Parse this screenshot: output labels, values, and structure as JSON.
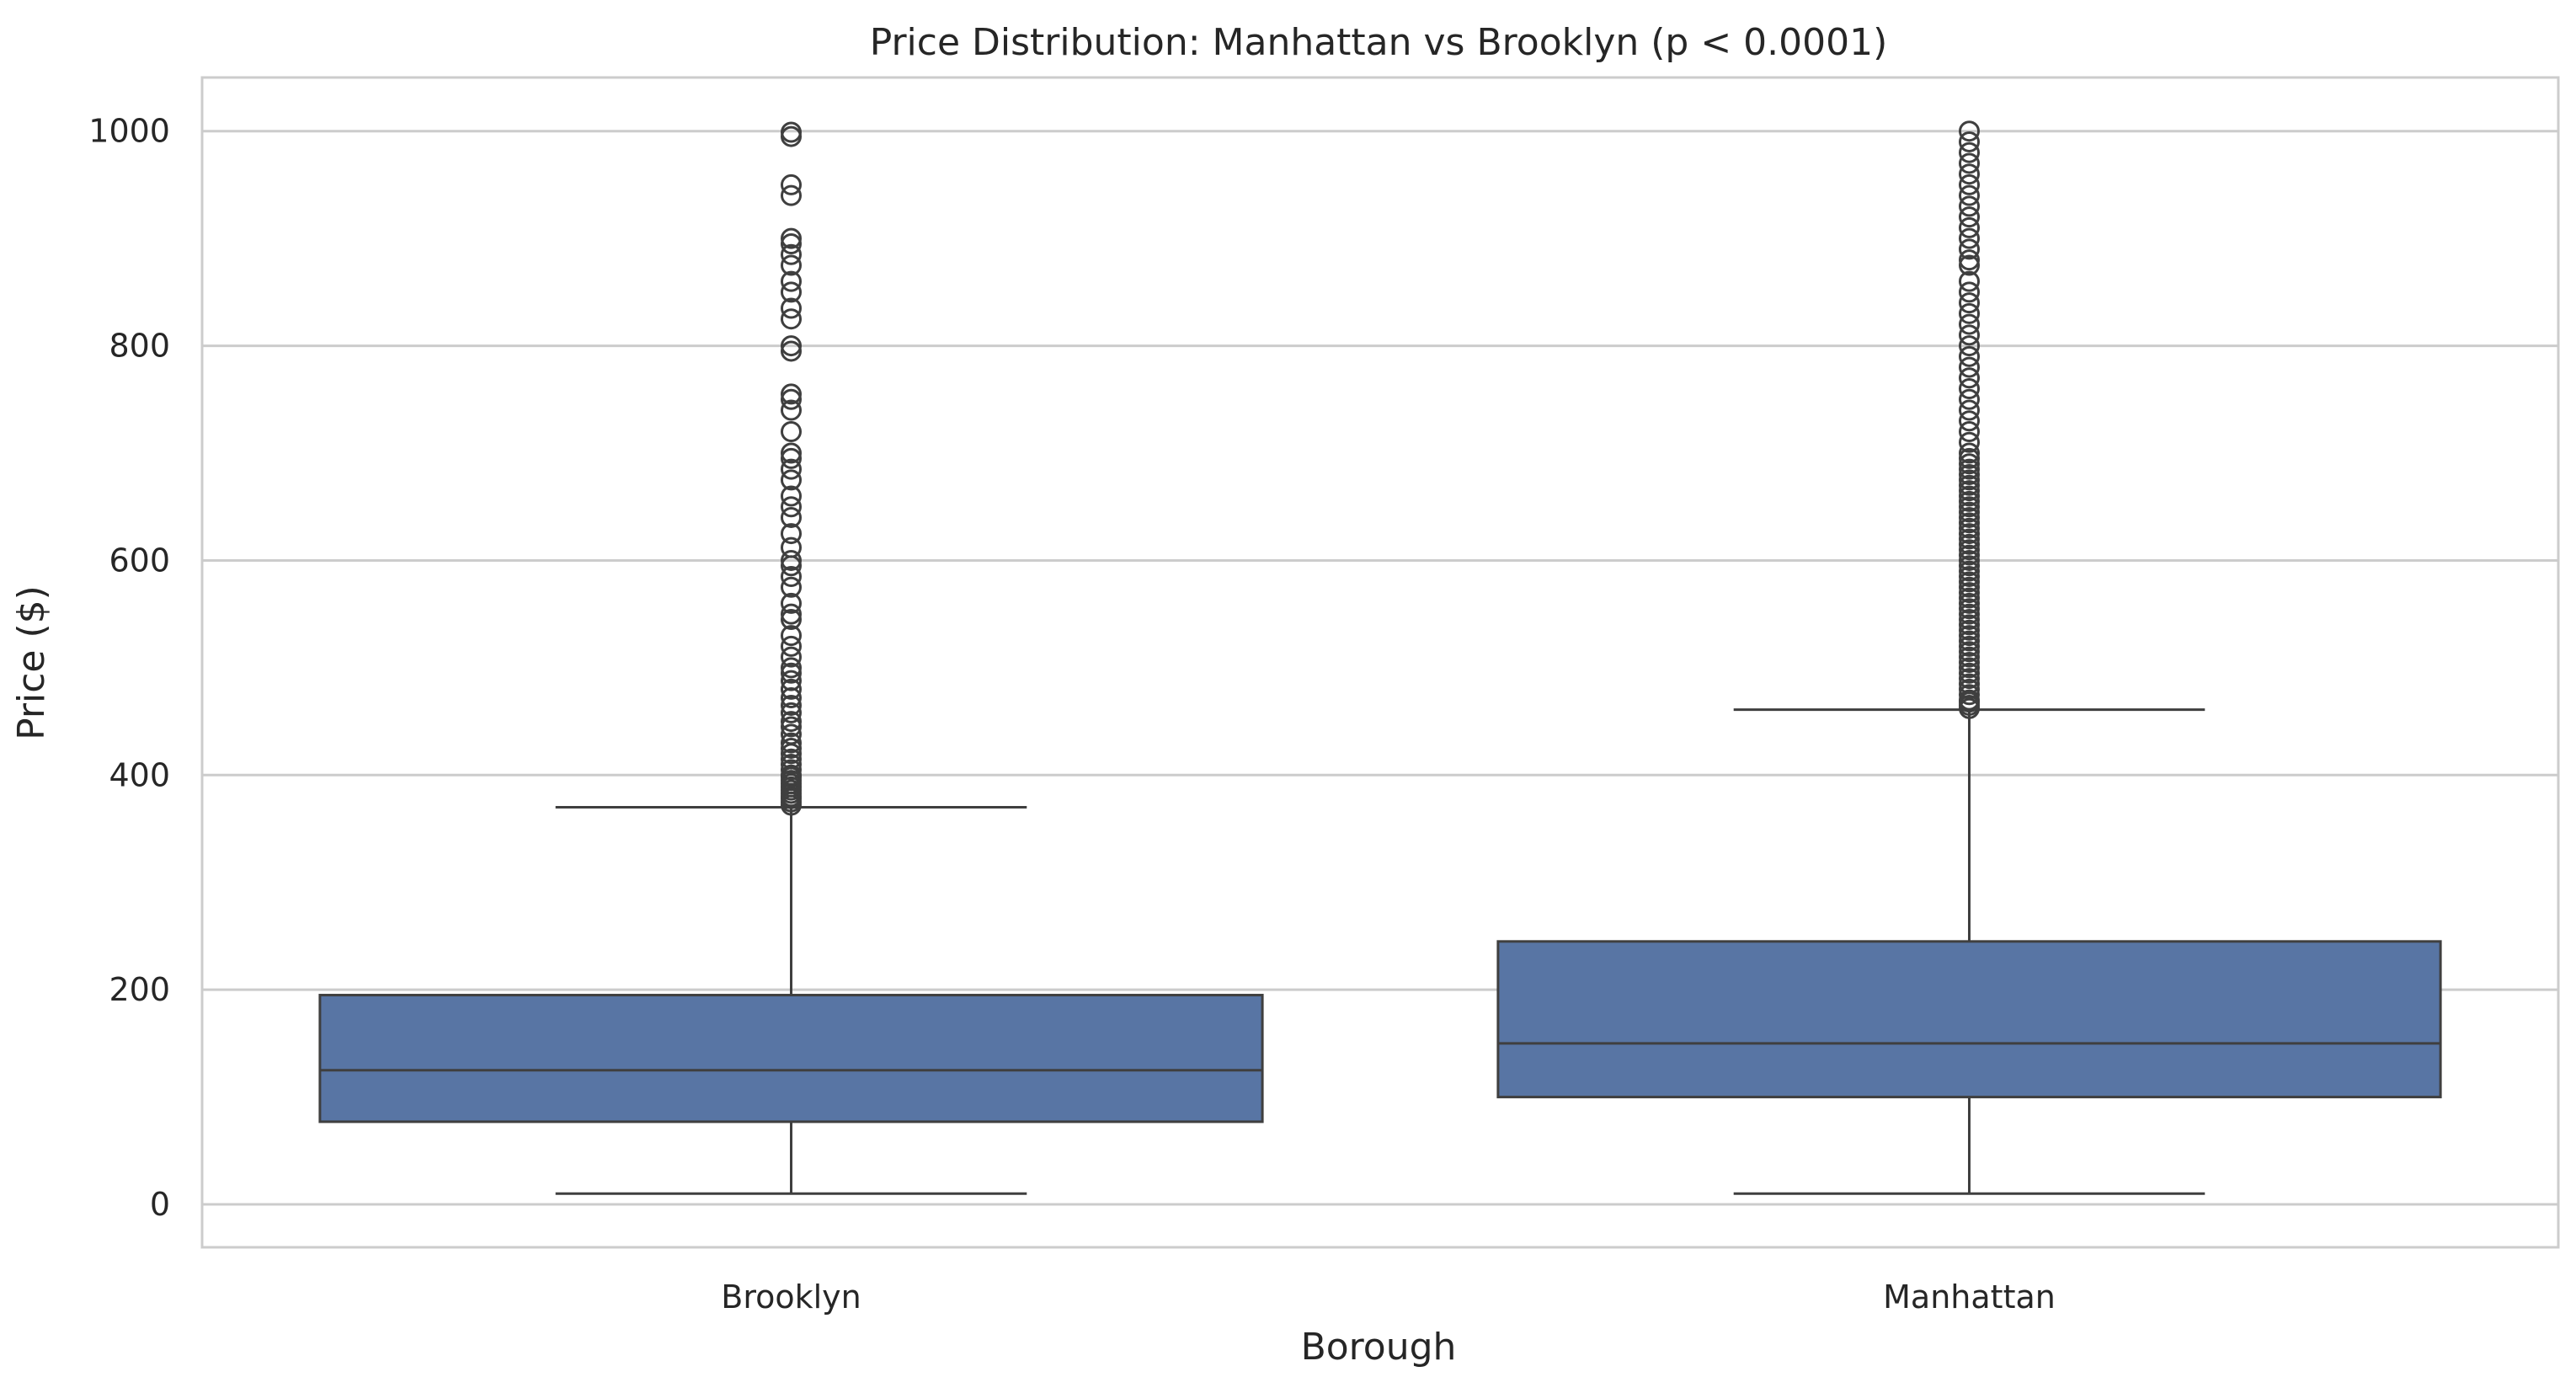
{
  "chart_data": {
    "type": "box",
    "title": "Price Distribution: Manhattan vs Brooklyn (p < 0.0001)",
    "xlabel": "Borough",
    "ylabel": "Price ($)",
    "categories": [
      "Brooklyn",
      "Manhattan"
    ],
    "ylim": [
      -40,
      1050
    ],
    "yticks": [
      0,
      200,
      400,
      600,
      800,
      1000
    ],
    "grid": true,
    "box_color": "#5875a4",
    "line_color": "#3f3f3f",
    "grid_color": "#cccccc",
    "boxes": [
      {
        "category": "Brooklyn",
        "whisker_low": 10,
        "q1": 77,
        "median": 125,
        "q3": 195,
        "whisker_high": 370,
        "outliers": [
          372,
          375,
          378,
          380,
          383,
          386,
          389,
          392,
          395,
          398,
          400,
          405,
          410,
          415,
          420,
          425,
          430,
          438,
          445,
          450,
          458,
          465,
          472,
          480,
          488,
          495,
          500,
          510,
          520,
          530,
          545,
          550,
          560,
          575,
          585,
          595,
          600,
          612,
          625,
          640,
          650,
          660,
          675,
          685,
          695,
          700,
          720,
          740,
          750,
          755,
          795,
          800,
          825,
          835,
          850,
          860,
          875,
          885,
          895,
          900,
          940,
          950,
          995,
          999
        ]
      },
      {
        "category": "Manhattan",
        "whisker_low": 10,
        "q1": 100,
        "median": 150,
        "q3": 245,
        "whisker_high": 461,
        "outliers": [
          462,
          465,
          468,
          470,
          475,
          480,
          485,
          490,
          495,
          500,
          505,
          510,
          515,
          520,
          525,
          530,
          535,
          540,
          545,
          550,
          555,
          560,
          565,
          570,
          575,
          580,
          585,
          590,
          595,
          600,
          605,
          610,
          615,
          620,
          625,
          630,
          635,
          640,
          645,
          650,
          655,
          660,
          665,
          670,
          675,
          680,
          685,
          690,
          695,
          700,
          710,
          720,
          730,
          740,
          750,
          760,
          770,
          780,
          790,
          800,
          810,
          820,
          830,
          840,
          850,
          860,
          875,
          880,
          890,
          900,
          910,
          920,
          930,
          940,
          950,
          960,
          970,
          980,
          990,
          1000
        ]
      }
    ]
  }
}
